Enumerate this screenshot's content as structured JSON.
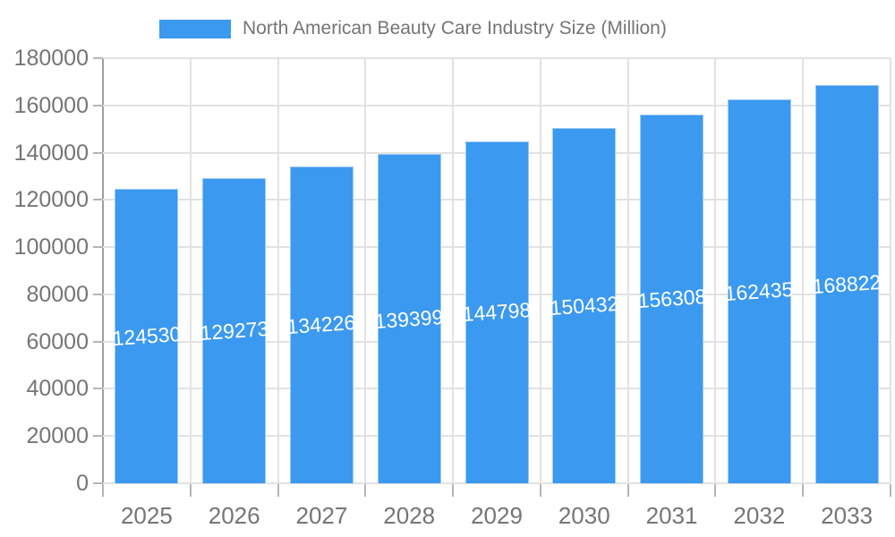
{
  "chart_data": {
    "type": "bar",
    "legend": {
      "position": "top",
      "label": "North American Beauty Care Industry Size (Million)"
    },
    "categories": [
      "2025",
      "2026",
      "2027",
      "2028",
      "2029",
      "2030",
      "2031",
      "2032",
      "2033"
    ],
    "series": [
      {
        "name": "North American Beauty Care Industry Size (Million)",
        "values": [
          124530,
          129273,
          134226,
          139399,
          144798,
          150432,
          156308,
          162435,
          168822
        ]
      }
    ],
    "value_labels_shown": true,
    "xlabel": "",
    "ylabel": "",
    "ylim": [
      0,
      180000
    ],
    "yticks": [
      0,
      20000,
      40000,
      60000,
      80000,
      100000,
      120000,
      140000,
      160000,
      180000
    ],
    "grid": true,
    "colors": {
      "bar": "#3B99EF",
      "bar_border": "#9EC9F5",
      "grid": "#E2E2E2",
      "axis": "#9E9E9E",
      "tick": "#B5B5B5",
      "text": "#757575",
      "value_label": "#FFFFFF",
      "background": "#FFFFFF"
    }
  }
}
